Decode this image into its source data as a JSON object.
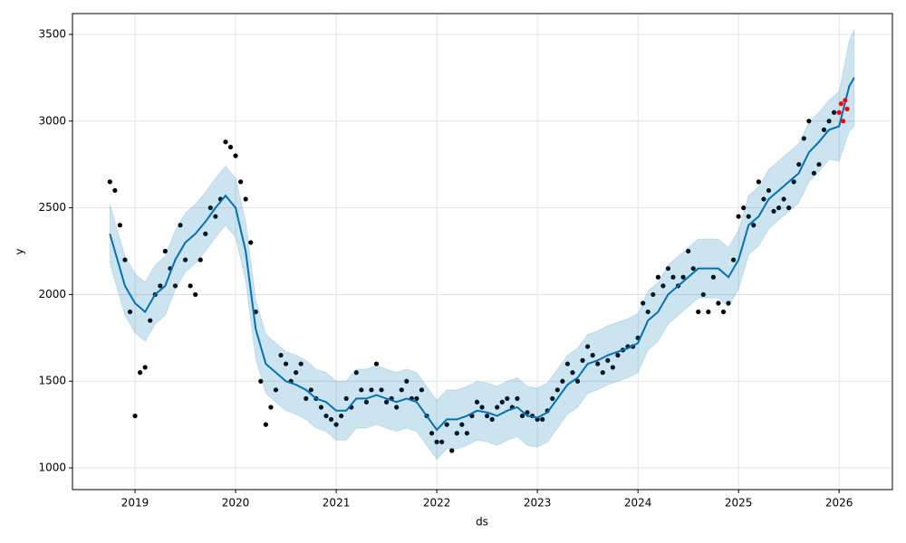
{
  "chart_data": {
    "type": "forecast",
    "x_label": "ds",
    "y_label": "y",
    "xlim": [
      2018.378,
      2026.53
    ],
    "ylim": [
      875,
      3620
    ],
    "xticks": [
      2019,
      2020,
      2021,
      2022,
      2023,
      2024,
      2025,
      2026
    ],
    "yticks": [
      1000,
      1500,
      2000,
      2500,
      3000,
      3500
    ],
    "grid": true,
    "series": [
      {
        "marker": "dot",
        "color": "#000000",
        "x": [
          2018.75,
          2018.8,
          2018.85,
          2018.9,
          2018.95,
          2019.0,
          2019.05,
          2019.1,
          2019.15,
          2019.2,
          2019.25,
          2019.3,
          2019.35,
          2019.4,
          2019.45,
          2019.5,
          2019.55,
          2019.6,
          2019.65,
          2019.7,
          2019.75,
          2019.8,
          2019.85,
          2019.9,
          2019.95,
          2020.0,
          2020.05,
          2020.1,
          2020.15,
          2020.2,
          2020.25,
          2020.3,
          2020.35,
          2020.4,
          2020.45,
          2020.5,
          2020.55,
          2020.6,
          2020.65,
          2020.7,
          2020.75,
          2020.8,
          2020.85,
          2020.9,
          2020.95,
          2021.0,
          2021.05,
          2021.1,
          2021.15,
          2021.2,
          2021.25,
          2021.3,
          2021.35,
          2021.4,
          2021.45,
          2021.5,
          2021.55,
          2021.6,
          2021.65,
          2021.7,
          2021.75,
          2021.8,
          2021.85,
          2021.9,
          2021.95,
          2022.0,
          2022.05,
          2022.1,
          2022.15,
          2022.2,
          2022.25,
          2022.3,
          2022.35,
          2022.4,
          2022.45,
          2022.5,
          2022.55,
          2022.6,
          2022.65,
          2022.7,
          2022.75,
          2022.8,
          2022.85,
          2022.9,
          2022.95,
          2023.0,
          2023.05,
          2023.1,
          2023.15,
          2023.2,
          2023.25,
          2023.3,
          2023.35,
          2023.4,
          2023.45,
          2023.5,
          2023.55,
          2023.6,
          2023.65,
          2023.7,
          2023.75,
          2023.8,
          2023.85,
          2023.9,
          2023.95,
          2024.0,
          2024.05,
          2024.1,
          2024.15,
          2024.2,
          2024.25,
          2024.3,
          2024.35,
          2024.4,
          2024.45,
          2024.5,
          2024.55,
          2024.6,
          2024.65,
          2024.7,
          2024.75,
          2024.8,
          2024.85,
          2024.9,
          2024.95,
          2025.0,
          2025.05,
          2025.1,
          2025.15,
          2025.2,
          2025.25,
          2025.3,
          2025.35,
          2025.4,
          2025.45,
          2025.5,
          2025.55,
          2025.6,
          2025.65,
          2025.7,
          2025.75,
          2025.8,
          2025.85,
          2025.9,
          2025.95
        ],
        "values": [
          2650,
          2600,
          2400,
          2200,
          1900,
          1300,
          1550,
          1580,
          1850,
          2000,
          2050,
          2250,
          2150,
          2050,
          2400,
          2200,
          2050,
          2000,
          2200,
          2350,
          2500,
          2450,
          2550,
          2880,
          2850,
          2800,
          2650,
          2550,
          2300,
          1900,
          1500,
          1250,
          1350,
          1450,
          1650,
          1600,
          1500,
          1550,
          1600,
          1400,
          1450,
          1400,
          1350,
          1300,
          1280,
          1250,
          1300,
          1400,
          1350,
          1550,
          1450,
          1380,
          1450,
          1600,
          1450,
          1380,
          1400,
          1350,
          1450,
          1500,
          1400,
          1400,
          1450,
          1300,
          1200,
          1150,
          1150,
          1250,
          1100,
          1200,
          1250,
          1200,
          1300,
          1380,
          1350,
          1300,
          1280,
          1350,
          1380,
          1400,
          1350,
          1400,
          1300,
          1320,
          1300,
          1280,
          1280,
          1330,
          1400,
          1450,
          1500,
          1600,
          1550,
          1500,
          1620,
          1700,
          1650,
          1600,
          1550,
          1620,
          1580,
          1650,
          1680,
          1700,
          1700,
          1750,
          1950,
          1900,
          2000,
          2100,
          2050,
          2150,
          2100,
          2050,
          2100,
          2250,
          2150,
          1900,
          2000,
          1900,
          2100,
          1950,
          1900,
          1950,
          2200,
          2450,
          2500,
          2450,
          2400,
          2650,
          2550,
          2600,
          2480,
          2500,
          2550,
          2500,
          2650,
          2750,
          2900,
          3000,
          2700,
          2750,
          2950,
          3000,
          3050
        ]
      },
      {
        "marker": "line",
        "color": "#0072B2",
        "x": [
          2018.75,
          2018.8,
          2018.9,
          2019.0,
          2019.1,
          2019.2,
          2019.3,
          2019.4,
          2019.5,
          2019.6,
          2019.7,
          2019.8,
          2019.9,
          2020.0,
          2020.1,
          2020.2,
          2020.3,
          2020.4,
          2020.5,
          2020.6,
          2020.7,
          2020.8,
          2020.9,
          2021.0,
          2021.1,
          2021.2,
          2021.3,
          2021.4,
          2021.5,
          2021.6,
          2021.7,
          2021.8,
          2021.9,
          2022.0,
          2022.1,
          2022.2,
          2022.3,
          2022.4,
          2022.5,
          2022.6,
          2022.7,
          2022.8,
          2022.9,
          2023.0,
          2023.1,
          2023.2,
          2023.3,
          2023.4,
          2023.5,
          2023.6,
          2023.7,
          2023.8,
          2023.9,
          2024.0,
          2024.1,
          2024.2,
          2024.3,
          2024.4,
          2024.5,
          2024.6,
          2024.7,
          2024.8,
          2024.9,
          2025.0,
          2025.1,
          2025.2,
          2025.3,
          2025.4,
          2025.5,
          2025.6,
          2025.7,
          2025.8,
          2025.9,
          2026.0,
          2026.1,
          2026.15
        ],
        "values": [
          2350,
          2250,
          2050,
          1950,
          1900,
          2000,
          2050,
          2200,
          2300,
          2350,
          2420,
          2500,
          2570,
          2500,
          2250,
          1800,
          1600,
          1550,
          1500,
          1480,
          1450,
          1400,
          1380,
          1330,
          1330,
          1400,
          1400,
          1420,
          1400,
          1380,
          1400,
          1380,
          1300,
          1220,
          1280,
          1280,
          1300,
          1330,
          1320,
          1300,
          1330,
          1350,
          1300,
          1290,
          1320,
          1400,
          1480,
          1520,
          1600,
          1620,
          1650,
          1670,
          1690,
          1720,
          1850,
          1900,
          2000,
          2050,
          2100,
          2150,
          2150,
          2150,
          2100,
          2200,
          2400,
          2450,
          2550,
          2600,
          2650,
          2700,
          2820,
          2880,
          2950,
          2970,
          3200,
          3250
        ],
        "lower": [
          2180,
          2080,
          1880,
          1780,
          1730,
          1830,
          1880,
          2030,
          2130,
          2180,
          2250,
          2330,
          2400,
          2330,
          2080,
          1630,
          1430,
          1380,
          1330,
          1310,
          1280,
          1230,
          1210,
          1160,
          1160,
          1230,
          1230,
          1250,
          1230,
          1210,
          1230,
          1210,
          1130,
          1050,
          1110,
          1110,
          1130,
          1160,
          1150,
          1130,
          1160,
          1180,
          1130,
          1120,
          1150,
          1230,
          1310,
          1350,
          1430,
          1450,
          1480,
          1500,
          1520,
          1550,
          1680,
          1730,
          1830,
          1880,
          1930,
          1980,
          1980,
          1980,
          1930,
          2030,
          2230,
          2280,
          2380,
          2430,
          2480,
          2530,
          2650,
          2710,
          2780,
          2770,
          2940,
          2970
        ],
        "upper": [
          2520,
          2420,
          2220,
          2120,
          2070,
          2170,
          2220,
          2370,
          2470,
          2520,
          2590,
          2670,
          2740,
          2670,
          2420,
          1970,
          1770,
          1720,
          1670,
          1650,
          1620,
          1570,
          1550,
          1500,
          1500,
          1570,
          1570,
          1590,
          1570,
          1550,
          1570,
          1550,
          1470,
          1390,
          1450,
          1450,
          1470,
          1500,
          1490,
          1470,
          1500,
          1520,
          1470,
          1460,
          1490,
          1570,
          1650,
          1690,
          1770,
          1790,
          1820,
          1840,
          1860,
          1890,
          2020,
          2070,
          2170,
          2220,
          2270,
          2320,
          2320,
          2320,
          2270,
          2370,
          2570,
          2620,
          2720,
          2770,
          2820,
          2870,
          2990,
          3050,
          3120,
          3170,
          3460,
          3530
        ]
      },
      {
        "marker": "dot",
        "color": "#ff0000",
        "x": [
          2026.0,
          2026.02,
          2026.04,
          2026.06,
          2026.08
        ],
        "values": [
          3050,
          3100,
          3000,
          3120,
          3070
        ]
      }
    ]
  }
}
